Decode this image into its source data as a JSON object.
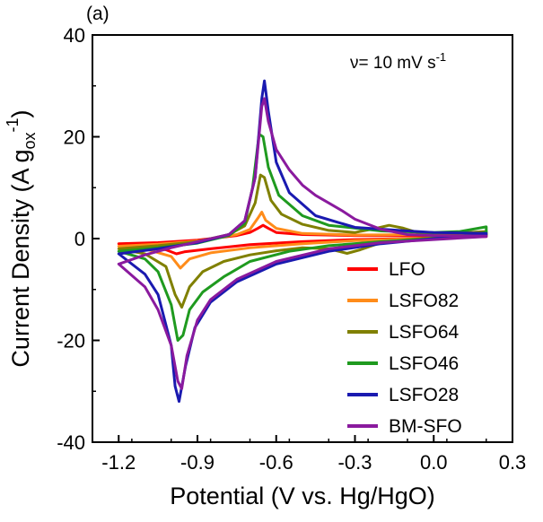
{
  "chart_data": {
    "type": "line",
    "panel_label": "(a)",
    "xlabel": "Potential (V vs. Hg/HgO)",
    "ylabel_main": "Current Density (A g",
    "ylabel_sub": "ox",
    "ylabel_sup": "-1",
    "ylabel_close": ")",
    "annotation_prefix": "ν= 10 mV s",
    "annotation_sup": "-1",
    "xlim": [
      -1.3,
      0.3
    ],
    "ylim": [
      -40,
      40
    ],
    "xticks": [
      {
        "v": -1.2,
        "label": "-1.2"
      },
      {
        "v": -0.9,
        "label": "-0.9"
      },
      {
        "v": -0.6,
        "label": "-0.6"
      },
      {
        "v": -0.3,
        "label": "-0.3"
      },
      {
        "v": 0.0,
        "label": "0.0"
      },
      {
        "v": 0.3,
        "label": "0.3"
      }
    ],
    "yticks": [
      {
        "v": 40,
        "label": "40"
      },
      {
        "v": 20,
        "label": "20"
      },
      {
        "v": 0,
        "label": "0"
      },
      {
        "v": -20,
        "label": "-20"
      },
      {
        "v": -40,
        "label": "-40"
      }
    ],
    "grid": false,
    "legend_position": "bottom-right",
    "series": [
      {
        "name": "LFO",
        "color": "#ff0000",
        "upper": [
          [
            -1.2,
            -1.0
          ],
          [
            -1.05,
            -0.8
          ],
          [
            -0.9,
            -0.3
          ],
          [
            -0.75,
            0.6
          ],
          [
            -0.7,
            1.2
          ],
          [
            -0.67,
            2.0
          ],
          [
            -0.65,
            2.6
          ],
          [
            -0.63,
            2.0
          ],
          [
            -0.6,
            1.2
          ],
          [
            -0.5,
            0.8
          ],
          [
            -0.3,
            0.6
          ],
          [
            0.0,
            0.6
          ],
          [
            0.2,
            0.8
          ]
        ],
        "lower": [
          [
            0.2,
            0.4
          ],
          [
            0.0,
            0.1
          ],
          [
            -0.3,
            -0.2
          ],
          [
            -0.5,
            -0.6
          ],
          [
            -0.7,
            -1.2
          ],
          [
            -0.85,
            -2.0
          ],
          [
            -0.95,
            -2.6
          ],
          [
            -0.98,
            -3.0
          ],
          [
            -1.02,
            -2.2
          ],
          [
            -1.1,
            -1.5
          ],
          [
            -1.2,
            -1.0
          ]
        ]
      },
      {
        "name": "LSFO82",
        "color": "#ff8c1a",
        "upper": [
          [
            -1.2,
            -1.5
          ],
          [
            -1.05,
            -1.1
          ],
          [
            -0.9,
            -0.5
          ],
          [
            -0.75,
            0.8
          ],
          [
            -0.7,
            1.8
          ],
          [
            -0.67,
            4.0
          ],
          [
            -0.655,
            5.2
          ],
          [
            -0.64,
            3.6
          ],
          [
            -0.6,
            2.0
          ],
          [
            -0.5,
            1.0
          ],
          [
            -0.3,
            0.7
          ],
          [
            0.0,
            0.8
          ],
          [
            0.2,
            1.0
          ]
        ],
        "lower": [
          [
            0.2,
            0.5
          ],
          [
            0.0,
            0.1
          ],
          [
            -0.3,
            -0.4
          ],
          [
            -0.5,
            -1.0
          ],
          [
            -0.7,
            -1.8
          ],
          [
            -0.85,
            -2.8
          ],
          [
            -0.93,
            -4.0
          ],
          [
            -0.965,
            -5.8
          ],
          [
            -1.0,
            -3.5
          ],
          [
            -1.1,
            -2.0
          ],
          [
            -1.2,
            -1.5
          ]
        ]
      },
      {
        "name": "LSFO64",
        "color": "#808000",
        "upper": [
          [
            -1.2,
            -2.0
          ],
          [
            -1.05,
            -1.4
          ],
          [
            -0.9,
            -0.6
          ],
          [
            -0.78,
            0.8
          ],
          [
            -0.72,
            2.5
          ],
          [
            -0.68,
            7.0
          ],
          [
            -0.66,
            12.5
          ],
          [
            -0.645,
            12.0
          ],
          [
            -0.62,
            7.5
          ],
          [
            -0.58,
            4.8
          ],
          [
            -0.5,
            2.8
          ],
          [
            -0.4,
            1.6
          ],
          [
            -0.3,
            1.2
          ],
          [
            -0.22,
            2.0
          ],
          [
            -0.17,
            2.6
          ],
          [
            -0.12,
            2.1
          ],
          [
            -0.05,
            1.0
          ],
          [
            0.0,
            0.8
          ],
          [
            0.2,
            1.4
          ]
        ],
        "lower": [
          [
            0.2,
            0.6
          ],
          [
            0.1,
            0.3
          ],
          [
            0.0,
            0.1
          ],
          [
            -0.1,
            -0.2
          ],
          [
            -0.2,
            -0.8
          ],
          [
            -0.28,
            -2.2
          ],
          [
            -0.33,
            -2.9
          ],
          [
            -0.4,
            -2.0
          ],
          [
            -0.5,
            -1.8
          ],
          [
            -0.6,
            -2.4
          ],
          [
            -0.7,
            -3.2
          ],
          [
            -0.8,
            -4.5
          ],
          [
            -0.88,
            -6.5
          ],
          [
            -0.93,
            -9.5
          ],
          [
            -0.96,
            -13.5
          ],
          [
            -0.985,
            -11.0
          ],
          [
            -1.02,
            -5.5
          ],
          [
            -1.1,
            -3.0
          ],
          [
            -1.2,
            -2.0
          ]
        ]
      },
      {
        "name": "LSFO46",
        "color": "#1f9a1f",
        "upper": [
          [
            -1.2,
            -2.5
          ],
          [
            -1.05,
            -1.8
          ],
          [
            -0.9,
            -0.9
          ],
          [
            -0.78,
            0.6
          ],
          [
            -0.72,
            3.0
          ],
          [
            -0.69,
            10.0
          ],
          [
            -0.665,
            20.5
          ],
          [
            -0.65,
            20.0
          ],
          [
            -0.63,
            14.0
          ],
          [
            -0.59,
            8.5
          ],
          [
            -0.5,
            4.5
          ],
          [
            -0.4,
            2.6
          ],
          [
            -0.2,
            1.5
          ],
          [
            0.0,
            1.2
          ],
          [
            0.1,
            1.4
          ],
          [
            0.2,
            2.3
          ]
        ],
        "lower": [
          [
            0.2,
            1.2
          ],
          [
            0.1,
            0.5
          ],
          [
            0.0,
            0.0
          ],
          [
            -0.2,
            -0.6
          ],
          [
            -0.4,
            -1.4
          ],
          [
            -0.55,
            -2.5
          ],
          [
            -0.7,
            -4.5
          ],
          [
            -0.8,
            -7.5
          ],
          [
            -0.88,
            -10.5
          ],
          [
            -0.93,
            -14.0
          ],
          [
            -0.955,
            -19.0
          ],
          [
            -0.975,
            -20.0
          ],
          [
            -1.0,
            -13.0
          ],
          [
            -1.05,
            -6.5
          ],
          [
            -1.1,
            -4.0
          ],
          [
            -1.2,
            -2.5
          ]
        ]
      },
      {
        "name": "LSFO28",
        "color": "#1a1ab0",
        "upper": [
          [
            -1.2,
            -3.0
          ],
          [
            -1.05,
            -2.0
          ],
          [
            -0.9,
            -0.8
          ],
          [
            -0.78,
            0.8
          ],
          [
            -0.72,
            3.5
          ],
          [
            -0.68,
            12.0
          ],
          [
            -0.655,
            27.5
          ],
          [
            -0.645,
            31.0
          ],
          [
            -0.63,
            25.0
          ],
          [
            -0.6,
            15.0
          ],
          [
            -0.55,
            9.0
          ],
          [
            -0.45,
            4.5
          ],
          [
            -0.3,
            2.2
          ],
          [
            -0.1,
            1.5
          ],
          [
            0.0,
            1.2
          ],
          [
            0.2,
            1.0
          ]
        ],
        "lower": [
          [
            0.2,
            0.8
          ],
          [
            0.0,
            0.0
          ],
          [
            -0.2,
            -1.0
          ],
          [
            -0.4,
            -2.5
          ],
          [
            -0.6,
            -5.0
          ],
          [
            -0.75,
            -8.5
          ],
          [
            -0.85,
            -12.5
          ],
          [
            -0.91,
            -17.5
          ],
          [
            -0.945,
            -25.0
          ],
          [
            -0.97,
            -32.0
          ],
          [
            -0.985,
            -29.0
          ],
          [
            -1.0,
            -21.0
          ],
          [
            -1.05,
            -11.0
          ],
          [
            -1.1,
            -7.0
          ],
          [
            -1.2,
            -3.0
          ]
        ]
      },
      {
        "name": "BM-SFO",
        "color": "#8a1a9e",
        "upper": [
          [
            -1.2,
            -5.0
          ],
          [
            -1.1,
            -3.2
          ],
          [
            -1.0,
            -1.8
          ],
          [
            -0.9,
            -0.6
          ],
          [
            -0.78,
            0.8
          ],
          [
            -0.72,
            3.5
          ],
          [
            -0.68,
            12.0
          ],
          [
            -0.655,
            26.0
          ],
          [
            -0.645,
            27.5
          ],
          [
            -0.63,
            23.0
          ],
          [
            -0.6,
            17.5
          ],
          [
            -0.55,
            13.5
          ],
          [
            -0.5,
            10.5
          ],
          [
            -0.45,
            8.5
          ],
          [
            -0.4,
            7.0
          ],
          [
            -0.35,
            5.5
          ],
          [
            -0.3,
            3.8
          ],
          [
            -0.2,
            1.8
          ],
          [
            -0.1,
            0.8
          ],
          [
            0.0,
            0.6
          ],
          [
            0.2,
            0.5
          ]
        ],
        "lower": [
          [
            0.2,
            0.4
          ],
          [
            0.0,
            -0.2
          ],
          [
            -0.2,
            -0.8
          ],
          [
            -0.4,
            -2.0
          ],
          [
            -0.6,
            -4.5
          ],
          [
            -0.75,
            -8.0
          ],
          [
            -0.85,
            -12.0
          ],
          [
            -0.9,
            -16.0
          ],
          [
            -0.94,
            -23.0
          ],
          [
            -0.96,
            -29.5
          ],
          [
            -0.975,
            -28.0
          ],
          [
            -1.0,
            -21.0
          ],
          [
            -1.05,
            -14.0
          ],
          [
            -1.1,
            -9.5
          ],
          [
            -1.2,
            -5.0
          ]
        ]
      }
    ]
  }
}
